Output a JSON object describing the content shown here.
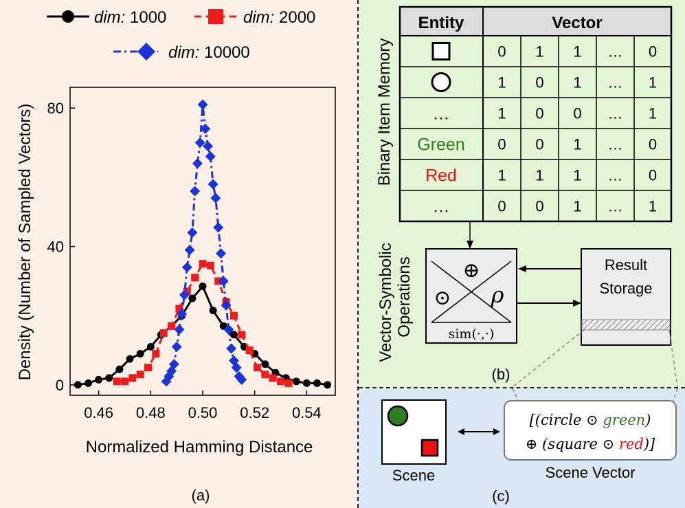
{
  "panel_a": {
    "label": "(a)",
    "legend": [
      {
        "prefix": "dim:",
        "value": "1000",
        "color": "#000000",
        "marker": "circle",
        "dash": "solid"
      },
      {
        "prefix": "dim:",
        "value": "2000",
        "color": "#ee1c1c",
        "marker": "square",
        "dash": "dashed"
      },
      {
        "prefix": "dim:",
        "value": "10000",
        "color": "#1a33dd",
        "marker": "diamond",
        "dash": "dashdot"
      }
    ]
  },
  "chart_data": {
    "type": "line",
    "title": "",
    "xlabel": "Normalized Hamming Distance",
    "ylabel": "Density (Number of Sampled Vectors)",
    "xlim": [
      0.449,
      0.551
    ],
    "ylim": [
      -3,
      86
    ],
    "xticks": [
      "0.46",
      "0.48",
      "0.50",
      "0.52",
      "0.54"
    ],
    "yticks": [
      "0",
      "40",
      "80"
    ],
    "series": [
      {
        "name": "dim: 1000",
        "color": "#000000",
        "marker": "circle",
        "dash": "solid",
        "x": [
          0.452,
          0.456,
          0.46,
          0.464,
          0.468,
          0.472,
          0.476,
          0.48,
          0.484,
          0.488,
          0.492,
          0.496,
          0.5,
          0.504,
          0.508,
          0.512,
          0.516,
          0.52,
          0.524,
          0.528,
          0.532,
          0.536,
          0.54,
          0.544,
          0.548
        ],
        "y": [
          0,
          0.5,
          1.5,
          2,
          4.5,
          7.5,
          9,
          11,
          14.5,
          17,
          20,
          25,
          28.5,
          21.5,
          17,
          14.5,
          11,
          9,
          6,
          3.5,
          2,
          1,
          0.5,
          0.5,
          0
        ]
      },
      {
        "name": "dim: 2000",
        "color": "#ee1c1c",
        "marker": "square",
        "dash": "dashed",
        "x": [
          0.467,
          0.47,
          0.473,
          0.476,
          0.479,
          0.482,
          0.485,
          0.488,
          0.491,
          0.494,
          0.497,
          0.5,
          0.503,
          0.506,
          0.509,
          0.512,
          0.515,
          0.518,
          0.521,
          0.524,
          0.527,
          0.53,
          0.533
        ],
        "y": [
          1,
          1,
          2,
          3,
          5,
          9,
          15,
          17,
          22,
          27,
          31,
          35,
          34.5,
          30,
          24,
          20,
          14.5,
          10,
          5,
          3,
          2,
          1,
          0.5
        ]
      },
      {
        "name": "dim: 10000",
        "color": "#1a33dd",
        "marker": "diamond",
        "dash": "dashdot",
        "x": [
          0.486,
          0.487,
          0.488,
          0.489,
          0.49,
          0.491,
          0.492,
          0.493,
          0.494,
          0.495,
          0.496,
          0.497,
          0.498,
          0.499,
          0.5,
          0.501,
          0.502,
          0.503,
          0.504,
          0.505,
          0.506,
          0.507,
          0.508,
          0.509,
          0.51,
          0.511,
          0.512,
          0.513,
          0.514,
          0.515
        ],
        "y": [
          1,
          2.5,
          4,
          6,
          11,
          16,
          20.5,
          26,
          34,
          39,
          44,
          56,
          64,
          70,
          81,
          74,
          69,
          66,
          58,
          54,
          45.5,
          38,
          30,
          23,
          16,
          10.5,
          7,
          5,
          2.5,
          1.5
        ]
      }
    ]
  },
  "panel_b": {
    "label": "(b)",
    "memory_label": "Binary Item Memory",
    "ops_label_line1": "Vector-Symbolic",
    "ops_label_line2": "Operations",
    "table_header_entity": "Entity",
    "table_header_vector": "Vector",
    "rows": [
      {
        "entity": "",
        "entity_shape": "square",
        "bits": [
          "0",
          "1",
          "1",
          "…",
          "0"
        ]
      },
      {
        "entity": "",
        "entity_shape": "circle",
        "bits": [
          "1",
          "0",
          "1",
          "…",
          "1"
        ]
      },
      {
        "entity": "…",
        "entity_shape": "",
        "bits": [
          "1",
          "0",
          "0",
          "…",
          "1"
        ]
      },
      {
        "entity": "Green",
        "entity_shape": "",
        "entity_color": "#2e7d1e",
        "bits": [
          "0",
          "0",
          "1",
          "…",
          "0"
        ]
      },
      {
        "entity": "Red",
        "entity_shape": "",
        "entity_color": "#ee1111",
        "bits": [
          "1",
          "1",
          "1",
          "…",
          "0"
        ]
      },
      {
        "entity": "…",
        "entity_shape": "",
        "bits": [
          "0",
          "0",
          "1",
          "…",
          "1"
        ]
      }
    ],
    "ops_symbols": {
      "top": "⊕",
      "left": "⊙",
      "right": "ρ",
      "bottom": "sim(·,·)"
    },
    "result_storage_line1": "Result",
    "result_storage_line2": "Storage"
  },
  "panel_c": {
    "label": "(c)",
    "scene_caption": "Scene",
    "scene_vector_caption": "Scene Vector",
    "vector_line1_pre": "[(circle ⊙ ",
    "vector_line1_color_word": "green",
    "vector_line1_post": ")",
    "vector_line2_pre": "⊕ (square ⊙ ",
    "vector_line2_color_word": "red",
    "vector_line2_post": ")]",
    "colors": {
      "green": "#2e7d1e",
      "red": "#ee1111"
    }
  }
}
